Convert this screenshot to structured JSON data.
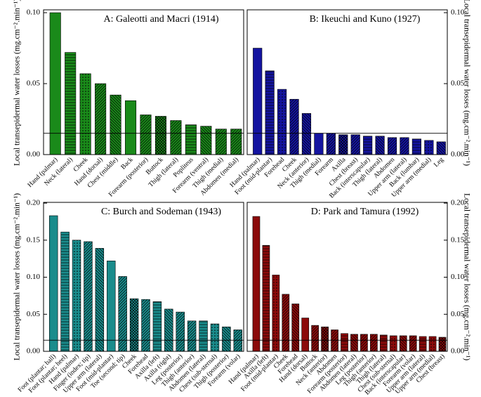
{
  "chart_data": [
    {
      "type": "bar",
      "title": "A: Galeotti and Macri (1914)",
      "ylabel": "Local transepidermal water losses (mg.cm⁻².min⁻¹)",
      "y_axis_side": "left",
      "color": "#1a8a1a",
      "categories": [
        "Hand (palmar)",
        "Neck (lateral)",
        "Cheek",
        "Hand (dorsal)",
        "Chest (middle)",
        "Back",
        "Forearm (posterior)",
        "Buttock",
        "Thigh (lateral)",
        "Popliteus",
        "Forearm (ventral)",
        "Thigh (medial)",
        "Abdomen (medial)"
      ],
      "values": [
        0.1,
        0.072,
        0.057,
        0.05,
        0.042,
        0.038,
        0.028,
        0.027,
        0.024,
        0.021,
        0.02,
        0.018,
        0.018
      ],
      "ylim": [
        0,
        0.102
      ],
      "yticks": [
        {
          "value": 0,
          "label": "0.00"
        },
        0.05,
        {
          "value": 0.1,
          "label": "0.10"
        }
      ],
      "reference_line": 0.015
    },
    {
      "type": "bar",
      "title": "B: Ikeuchi and Kuno (1927)",
      "ylabel": "Local transepidermal water losses (mg.cm⁻².min⁻¹)",
      "y_axis_side": "right",
      "color": "#1414a0",
      "categories": [
        "Hand (palmar)",
        "Foot (mid-plantar)",
        "Forehead",
        "Cheek",
        "Neck (anterior)",
        "Thigh (medial)",
        "Forearm",
        "Axilla",
        "Chest (breast)",
        "Back (interscapular)",
        "Thigh (lateral)",
        "Abdomen",
        "Upper arm (lateral)",
        "Back (lumbar)",
        "Upper arm (medial)",
        "Leg"
      ],
      "values": [
        0.075,
        0.059,
        0.046,
        0.039,
        0.029,
        0.015,
        0.015,
        0.014,
        0.014,
        0.013,
        0.013,
        0.012,
        0.012,
        0.011,
        0.01,
        0.009
      ],
      "ylim": [
        0,
        0.102
      ],
      "yticks": [
        {
          "value": 0,
          "label": "0.00"
        },
        0.05,
        {
          "value": 0.1,
          "label": "0.10"
        }
      ],
      "reference_line": 0.015
    },
    {
      "type": "bar",
      "title": "C: Burch and Sodeman (1943)",
      "ylabel": "Local transepidermal water losses (mg.cm⁻².min⁻¹)",
      "y_axis_side": "left",
      "color": "#1a8c8c",
      "categories": [
        "Foot (plantar; ball)",
        "Foot (plantar; heel)",
        "Hand (palmar)",
        "Finger (index; tip)",
        "Upper arm (lateral)",
        "Foot (mid-plantar)",
        "Toe (second; tip)",
        "Cheek",
        "Forehead",
        "Axilla (left)",
        "Axilla (right)",
        "Leg (posterior)",
        "Thigh (anterior)",
        "Abdomen (lateral)",
        "Chest (sub-sternal)",
        "Thigh (posterior)",
        "Forearm (volar)"
      ],
      "values": [
        0.183,
        0.161,
        0.15,
        0.148,
        0.139,
        0.122,
        0.101,
        0.071,
        0.07,
        0.067,
        0.057,
        0.053,
        0.041,
        0.041,
        0.037,
        0.033,
        0.029
      ],
      "ylim": [
        0,
        0.201
      ],
      "yticks": [
        {
          "value": 0,
          "label": "0.00"
        },
        0.05,
        {
          "value": 0.1,
          "label": "0.10"
        },
        0.15,
        {
          "value": 0.2,
          "label": "0.20"
        }
      ],
      "reference_line": 0.015
    },
    {
      "type": "bar",
      "title": "D: Park and Tamura (1992)",
      "ylabel": "Local transepidermal water losses (mg.cm⁻².min⁻¹)",
      "y_axis_side": "right",
      "color": "#8c0a0a",
      "categories": [
        "Hand (palmar)",
        "Axilla (left)",
        "Foot (mid-plantar)",
        "Cheek",
        "Forehead",
        "Hand (dorsal)",
        "Buttock",
        "Neck (anterior)",
        "Abdomen",
        "Forearm (posterior)",
        "Abdomen (lateral)",
        "Leg (posterior)",
        "Thigh (anterior)",
        "Thigh (lateral)",
        "Chest (sub-sternal)",
        "Back (interscapular)",
        "Forearm (volar)",
        "Upper arm (lateral)",
        "Upper arm (medial)",
        "Chest (breast)"
      ],
      "values": [
        0.182,
        0.143,
        0.103,
        0.077,
        0.064,
        0.045,
        0.035,
        0.033,
        0.029,
        0.024,
        0.023,
        0.023,
        0.023,
        0.022,
        0.021,
        0.021,
        0.021,
        0.02,
        0.02,
        0.019
      ],
      "ylim": [
        0,
        0.201
      ],
      "yticks": [
        {
          "value": 0,
          "label": "0.00"
        },
        0.05,
        {
          "value": 0.1,
          "label": "0.10"
        },
        0.15,
        {
          "value": 0.2,
          "label": "0.20"
        }
      ],
      "reference_line": 0.015
    }
  ]
}
